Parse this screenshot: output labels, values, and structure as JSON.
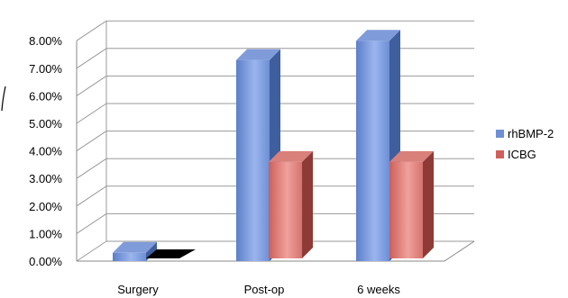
{
  "chart_data": {
    "type": "bar",
    "style": "3d-clustered-column",
    "categories": [
      "Surgery",
      "Post-op",
      "6 weeks"
    ],
    "series": [
      {
        "name": "rhBMP-2",
        "color": "#4f81bd",
        "values": [
          0.3,
          7.3,
          8.0
        ]
      },
      {
        "name": "ICBG",
        "color": "#c0504d",
        "values": [
          0.0,
          3.5,
          3.5
        ]
      }
    ],
    "ylim": [
      0,
      8
    ],
    "yticks": [
      "0.00%",
      "1.00%",
      "2.00%",
      "3.00%",
      "4.00%",
      "5.00%",
      "6.00%",
      "7.00%",
      "8.00%"
    ],
    "ylabel": "",
    "xlabel": "",
    "title": "",
    "grid": true,
    "legend": "right"
  }
}
